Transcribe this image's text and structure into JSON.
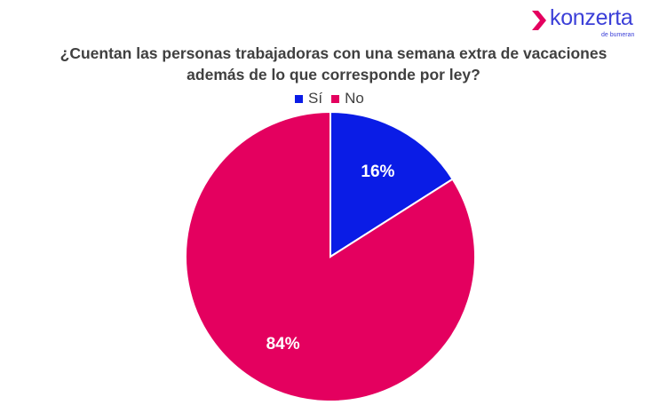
{
  "logo": {
    "wordmark": "konzerta",
    "tagline": "de bumeran"
  },
  "chart_data": {
    "type": "pie",
    "title_lines": [
      "¿Cuentan las personas trabajadoras con una semana extra de vacaciones",
      "además de lo que corresponde por ley?"
    ],
    "categories": [
      "Sí",
      "No"
    ],
    "values": [
      16,
      84
    ],
    "data_labels": [
      "16%",
      "84%"
    ],
    "colors": [
      "#0a1ce6",
      "#e4005f"
    ],
    "legend_position": "top"
  }
}
